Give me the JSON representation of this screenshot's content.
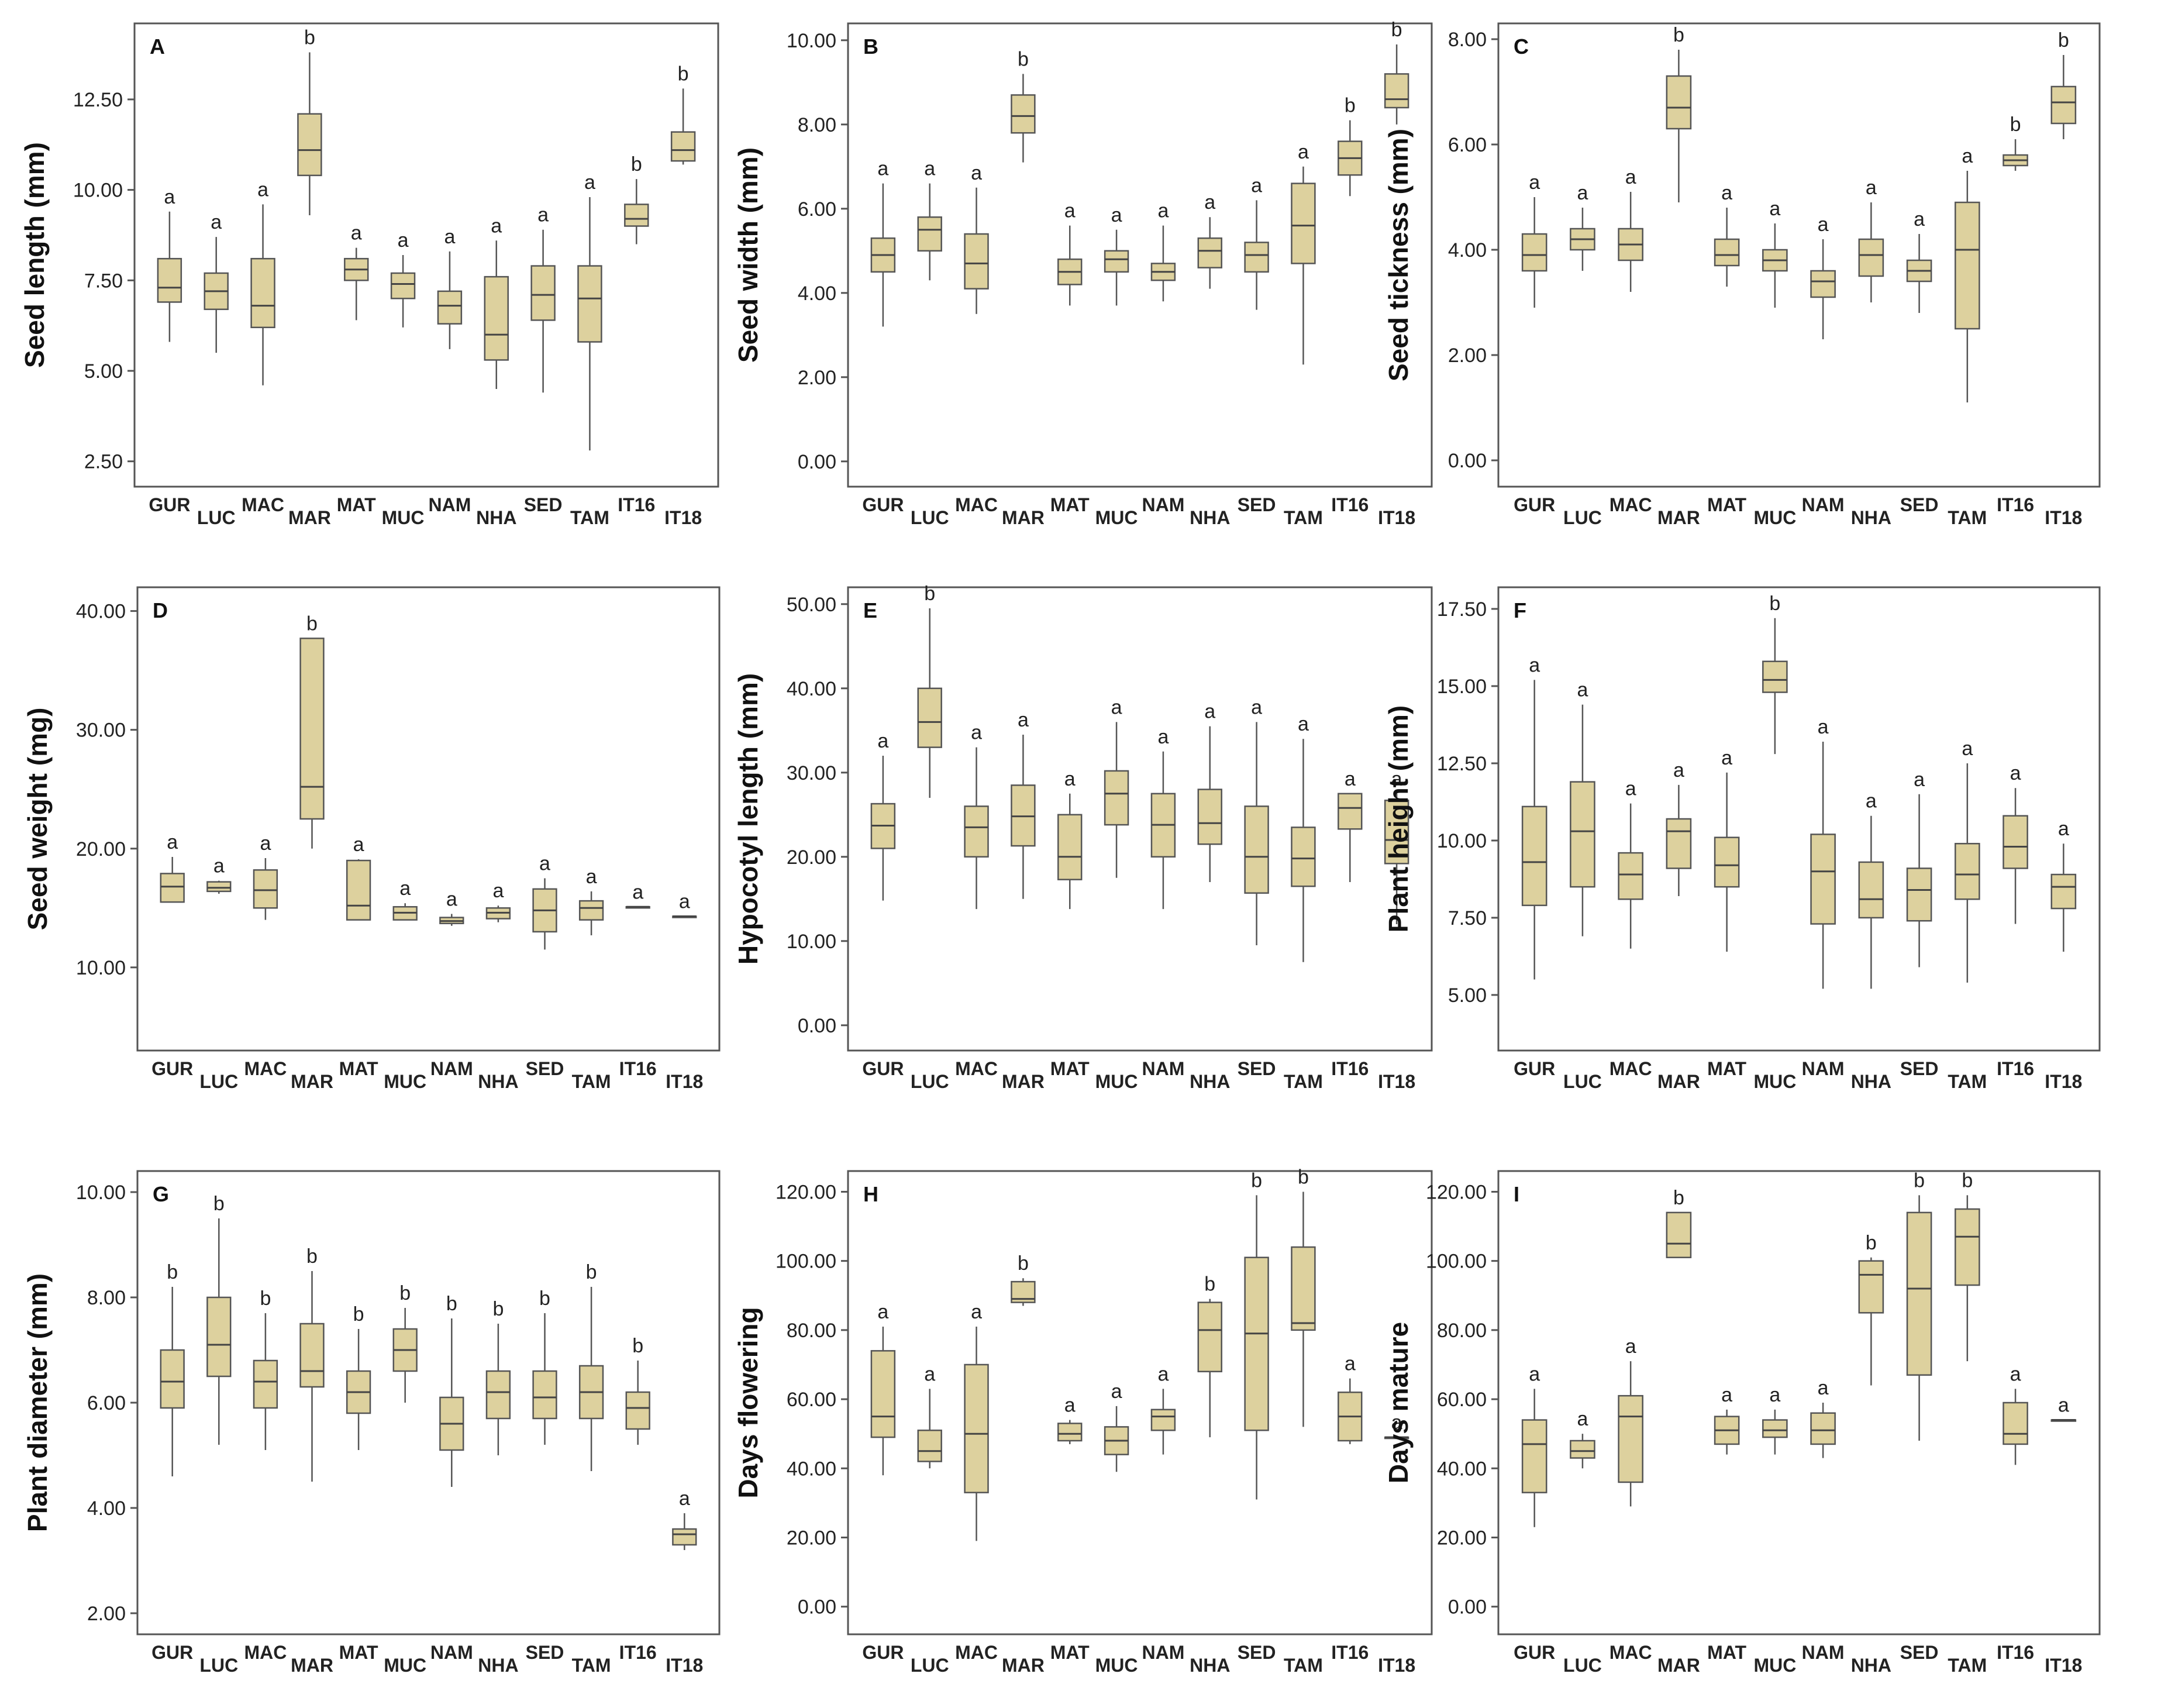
{
  "style": {
    "box_fill": "#ddd19e",
    "box_stroke": "#555555",
    "frame_stroke": "#555555"
  },
  "chart_data": [
    {
      "type": "box",
      "panel": "A",
      "ylabel": "Seed length (mm)",
      "ylim": [
        1.8,
        14.6
      ],
      "yticks": [
        "2.50",
        "5.00",
        "7.50",
        "10.00",
        "12.50"
      ],
      "categories": [
        "GUR",
        "LUC",
        "MAC",
        "MAR",
        "MAT",
        "MUC",
        "NAM",
        "NHA",
        "SED",
        "TAM",
        "IT16",
        "IT18"
      ],
      "letters": [
        "a",
        "a",
        "a",
        "b",
        "a",
        "a",
        "a",
        "a",
        "a",
        "a",
        "b",
        "b"
      ],
      "min": [
        5.8,
        5.5,
        4.6,
        9.3,
        6.4,
        6.2,
        5.6,
        4.5,
        4.4,
        2.8,
        8.5,
        10.7
      ],
      "q1": [
        6.9,
        6.7,
        6.2,
        10.4,
        7.5,
        7.0,
        6.3,
        5.3,
        6.4,
        5.8,
        9.0,
        10.8
      ],
      "median": [
        7.3,
        7.2,
        6.8,
        11.1,
        7.8,
        7.4,
        6.8,
        6.0,
        7.1,
        7.0,
        9.2,
        11.1
      ],
      "q3": [
        8.1,
        7.7,
        8.1,
        12.1,
        8.1,
        7.7,
        7.2,
        7.6,
        7.9,
        7.9,
        9.6,
        11.6
      ],
      "max": [
        9.4,
        8.7,
        9.6,
        13.8,
        8.4,
        8.2,
        8.3,
        8.6,
        8.9,
        9.8,
        10.3,
        12.8
      ]
    },
    {
      "type": "box",
      "panel": "B",
      "ylabel": "Seed width (mm)",
      "ylim": [
        -0.6,
        10.4
      ],
      "yticks": [
        "0.00",
        "2.00",
        "4.00",
        "6.00",
        "8.00",
        "10.00"
      ],
      "categories": [
        "GUR",
        "LUC",
        "MAC",
        "MAR",
        "MAT",
        "MUC",
        "NAM",
        "NHA",
        "SED",
        "TAM",
        "IT16",
        "IT18"
      ],
      "letters": [
        "a",
        "a",
        "a",
        "b",
        "a",
        "a",
        "a",
        "a",
        "a",
        "a",
        "b",
        "b"
      ],
      "min": [
        3.2,
        4.3,
        3.5,
        7.1,
        3.7,
        3.7,
        3.8,
        4.1,
        3.6,
        2.3,
        6.3,
        8.0
      ],
      "q1": [
        4.5,
        5.0,
        4.1,
        7.8,
        4.2,
        4.5,
        4.3,
        4.6,
        4.5,
        4.7,
        6.8,
        8.4
      ],
      "median": [
        4.9,
        5.5,
        4.7,
        8.2,
        4.5,
        4.8,
        4.5,
        5.0,
        4.9,
        5.6,
        7.2,
        8.6
      ],
      "q3": [
        5.3,
        5.8,
        5.4,
        8.7,
        4.8,
        5.0,
        4.7,
        5.3,
        5.2,
        6.6,
        7.6,
        9.2
      ],
      "max": [
        6.6,
        6.6,
        6.5,
        9.2,
        5.6,
        5.5,
        5.6,
        5.8,
        6.2,
        7.0,
        8.1,
        9.9
      ]
    },
    {
      "type": "box",
      "panel": "C",
      "ylabel": "Seed tickness (mm)",
      "ylim": [
        -0.5,
        8.3
      ],
      "yticks": [
        "0.00",
        "2.00",
        "4.00",
        "6.00",
        "8.00"
      ],
      "categories": [
        "GUR",
        "LUC",
        "MAC",
        "MAR",
        "MAT",
        "MUC",
        "NAM",
        "NHA",
        "SED",
        "TAM",
        "IT16",
        "IT18"
      ],
      "letters": [
        "a",
        "a",
        "a",
        "b",
        "a",
        "a",
        "a",
        "a",
        "a",
        "a",
        "b",
        "b"
      ],
      "min": [
        2.9,
        3.6,
        3.2,
        4.9,
        3.3,
        2.9,
        2.3,
        3.0,
        2.8,
        1.1,
        5.5,
        6.1
      ],
      "q1": [
        3.6,
        4.0,
        3.8,
        6.3,
        3.7,
        3.6,
        3.1,
        3.5,
        3.4,
        2.5,
        5.6,
        6.4
      ],
      "median": [
        3.9,
        4.2,
        4.1,
        6.7,
        3.9,
        3.8,
        3.4,
        3.9,
        3.6,
        4.0,
        5.7,
        6.8
      ],
      "q3": [
        4.3,
        4.4,
        4.4,
        7.3,
        4.2,
        4.0,
        3.6,
        4.2,
        3.8,
        4.9,
        5.8,
        7.1
      ],
      "max": [
        5.0,
        4.8,
        5.1,
        7.8,
        4.8,
        4.5,
        4.2,
        4.9,
        4.3,
        5.5,
        6.1,
        7.7
      ]
    },
    {
      "type": "box",
      "panel": "D",
      "ylabel": "Seed weight (mg)",
      "ylim": [
        3.0,
        42.0
      ],
      "yticks": [
        "10.00",
        "20.00",
        "30.00",
        "40.00"
      ],
      "categories": [
        "GUR",
        "LUC",
        "MAC",
        "MAR",
        "MAT",
        "MUC",
        "NAM",
        "NHA",
        "SED",
        "TAM",
        "IT16",
        "IT18"
      ],
      "letters": [
        "a",
        "a",
        "a",
        "b",
        "a",
        "a",
        "a",
        "a",
        "a",
        "a",
        "a",
        "a"
      ],
      "min": [
        15.5,
        16.2,
        14.0,
        20.0,
        14.0,
        14.0,
        13.5,
        13.8,
        11.5,
        12.7,
        15.1,
        14.3
      ],
      "q1": [
        15.5,
        16.4,
        15.0,
        22.5,
        14.0,
        14.0,
        13.7,
        14.1,
        13.0,
        14.0,
        15.1,
        14.3
      ],
      "median": [
        16.8,
        16.7,
        16.5,
        25.2,
        15.2,
        14.6,
        13.9,
        14.6,
        14.8,
        15.0,
        15.1,
        14.3
      ],
      "q3": [
        17.9,
        17.2,
        18.2,
        37.7,
        19.0,
        15.1,
        14.2,
        15.0,
        16.6,
        15.6,
        15.1,
        14.3
      ],
      "max": [
        19.3,
        17.3,
        19.2,
        37.7,
        19.1,
        15.4,
        14.5,
        15.2,
        17.5,
        16.4,
        15.1,
        14.3
      ]
    },
    {
      "type": "box",
      "panel": "E",
      "ylabel": "Hypocotyl length (mm)",
      "ylim": [
        -3.0,
        52.0
      ],
      "yticks": [
        "0.00",
        "10.00",
        "20.00",
        "30.00",
        "40.00",
        "50.00"
      ],
      "categories": [
        "GUR",
        "LUC",
        "MAC",
        "MAR",
        "MAT",
        "MUC",
        "NAM",
        "NHA",
        "SED",
        "TAM",
        "IT16",
        "IT18"
      ],
      "letters": [
        "a",
        "b",
        "a",
        "a",
        "a",
        "a",
        "a",
        "a",
        "a",
        "a",
        "a",
        "a"
      ],
      "min": [
        14.8,
        27.0,
        13.8,
        15.0,
        13.8,
        17.5,
        13.8,
        17.0,
        9.5,
        7.5,
        17.0,
        12.0
      ],
      "q1": [
        21.0,
        33.0,
        20.0,
        21.3,
        17.3,
        23.8,
        20.0,
        21.5,
        15.7,
        16.5,
        23.3,
        19.2
      ],
      "median": [
        23.7,
        36.0,
        23.5,
        24.8,
        20.0,
        27.5,
        23.8,
        24.0,
        20.0,
        19.8,
        25.8,
        22.0
      ],
      "q3": [
        26.3,
        40.0,
        26.0,
        28.5,
        25.0,
        30.2,
        27.5,
        28.0,
        26.0,
        23.5,
        27.5,
        26.7
      ],
      "max": [
        32.0,
        49.5,
        33.0,
        34.5,
        27.5,
        36.0,
        32.5,
        35.5,
        36.0,
        34.0,
        27.5,
        27.5
      ]
    },
    {
      "type": "box",
      "panel": "F",
      "ylabel": "Plant height (mm)",
      "ylim": [
        3.2,
        18.2
      ],
      "yticks": [
        "5.00",
        "7.50",
        "10.00",
        "12.50",
        "15.00",
        "17.50"
      ],
      "categories": [
        "GUR",
        "LUC",
        "MAC",
        "MAR",
        "MAT",
        "MUC",
        "NAM",
        "NHA",
        "SED",
        "TAM",
        "IT16",
        "IT18"
      ],
      "letters": [
        "a",
        "a",
        "a",
        "a",
        "a",
        "b",
        "a",
        "a",
        "a",
        "a",
        "a",
        "a"
      ],
      "min": [
        5.5,
        6.9,
        6.5,
        8.2,
        6.4,
        12.8,
        5.2,
        5.2,
        5.9,
        5.4,
        7.3,
        6.4
      ],
      "q1": [
        7.9,
        8.5,
        8.1,
        9.1,
        8.5,
        14.8,
        7.3,
        7.5,
        7.4,
        8.1,
        9.1,
        7.8
      ],
      "median": [
        9.3,
        10.3,
        8.9,
        10.3,
        9.2,
        15.2,
        9.0,
        8.1,
        8.4,
        8.9,
        9.8,
        8.5
      ],
      "q3": [
        11.1,
        11.9,
        9.6,
        10.7,
        10.1,
        15.8,
        10.2,
        9.3,
        9.1,
        9.9,
        10.8,
        8.9
      ],
      "max": [
        15.2,
        14.4,
        11.2,
        11.8,
        12.2,
        17.2,
        13.2,
        10.8,
        11.5,
        12.5,
        11.7,
        9.9
      ]
    },
    {
      "type": "box",
      "panel": "G",
      "ylabel": "Plant diameter (mm)",
      "ylim": [
        1.6,
        10.4
      ],
      "yticks": [
        "2.00",
        "4.00",
        "6.00",
        "8.00",
        "10.00"
      ],
      "categories": [
        "GUR",
        "LUC",
        "MAC",
        "MAR",
        "MAT",
        "MUC",
        "NAM",
        "NHA",
        "SED",
        "TAM",
        "IT16",
        "IT18"
      ],
      "letters": [
        "b",
        "b",
        "b",
        "b",
        "b",
        "b",
        "b",
        "b",
        "b",
        "b",
        "b",
        "a"
      ],
      "min": [
        4.6,
        5.2,
        5.1,
        4.5,
        5.1,
        6.0,
        4.4,
        5.0,
        5.2,
        4.7,
        5.2,
        3.2
      ],
      "q1": [
        5.9,
        6.5,
        5.9,
        6.3,
        5.8,
        6.6,
        5.1,
        5.7,
        5.7,
        5.7,
        5.5,
        3.3
      ],
      "median": [
        6.4,
        7.1,
        6.4,
        6.6,
        6.2,
        7.0,
        5.6,
        6.2,
        6.1,
        6.2,
        5.9,
        3.5
      ],
      "q3": [
        7.0,
        8.0,
        6.8,
        7.5,
        6.6,
        7.4,
        6.1,
        6.6,
        6.6,
        6.7,
        6.2,
        3.6
      ],
      "max": [
        8.2,
        9.5,
        7.7,
        8.5,
        7.4,
        7.8,
        7.6,
        7.5,
        7.7,
        8.2,
        6.8,
        3.9
      ]
    },
    {
      "type": "box",
      "panel": "H",
      "ylabel": "Days flowering",
      "ylim": [
        -8.0,
        126.0
      ],
      "yticks": [
        "0.00",
        "20.00",
        "40.00",
        "60.00",
        "80.00",
        "100.00",
        "120.00"
      ],
      "categories": [
        "GUR",
        "LUC",
        "MAC",
        "MAR",
        "MAT",
        "MUC",
        "NAM",
        "NHA",
        "SED",
        "TAM",
        "IT16",
        "IT18"
      ],
      "letters": [
        "a",
        "a",
        "a",
        "b",
        "a",
        "a",
        "a",
        "b",
        "b",
        "b",
        "a",
        "a"
      ],
      "min": [
        38.0,
        40.0,
        19.0,
        87.0,
        47.0,
        39.0,
        44.0,
        49.0,
        31.0,
        52.0,
        47.0,
        49.0
      ],
      "q1": [
        49.0,
        42.0,
        33.0,
        88.0,
        48.0,
        44.0,
        51.0,
        68.0,
        51.0,
        80.0,
        48.0,
        49.0
      ],
      "median": [
        55.0,
        45.0,
        50.0,
        89.0,
        50.0,
        48.0,
        55.0,
        80.0,
        79.0,
        82.0,
        55.0,
        49.0
      ],
      "q3": [
        74.0,
        51.0,
        70.0,
        94.0,
        53.0,
        52.0,
        57.0,
        88.0,
        101.0,
        104.0,
        62.0,
        49.0
      ],
      "max": [
        81.0,
        63.0,
        81.0,
        95.0,
        54.0,
        58.0,
        63.0,
        89.0,
        119.0,
        120.0,
        66.0,
        49.0
      ]
    },
    {
      "type": "box",
      "panel": "I",
      "ylabel": "Days mature",
      "ylim": [
        -8.0,
        126.0
      ],
      "yticks": [
        "0.00",
        "20.00",
        "40.00",
        "60.00",
        "80.00",
        "100.00",
        "120.00"
      ],
      "categories": [
        "GUR",
        "LUC",
        "MAC",
        "MAR",
        "MAT",
        "MUC",
        "NAM",
        "NHA",
        "SED",
        "TAM",
        "IT16",
        "IT18"
      ],
      "letters": [
        "a",
        "a",
        "a",
        "b",
        "a",
        "a",
        "a",
        "b",
        "b",
        "b",
        "a",
        "a"
      ],
      "min": [
        23.0,
        40.0,
        29.0,
        101.0,
        44.0,
        44.0,
        43.0,
        64.0,
        48.0,
        71.0,
        41.0,
        54.0
      ],
      "q1": [
        33.0,
        43.0,
        36.0,
        101.0,
        47.0,
        49.0,
        47.0,
        85.0,
        67.0,
        93.0,
        47.0,
        54.0
      ],
      "median": [
        47.0,
        45.0,
        55.0,
        105.0,
        51.0,
        51.0,
        51.0,
        96.0,
        92.0,
        107.0,
        50.0,
        54.0
      ],
      "q3": [
        54.0,
        48.0,
        61.0,
        114.0,
        55.0,
        54.0,
        56.0,
        100.0,
        114.0,
        115.0,
        59.0,
        54.0
      ],
      "max": [
        63.0,
        50.0,
        71.0,
        114.0,
        57.0,
        57.0,
        59.0,
        101.0,
        119.0,
        119.0,
        63.0,
        54.0
      ]
    }
  ]
}
